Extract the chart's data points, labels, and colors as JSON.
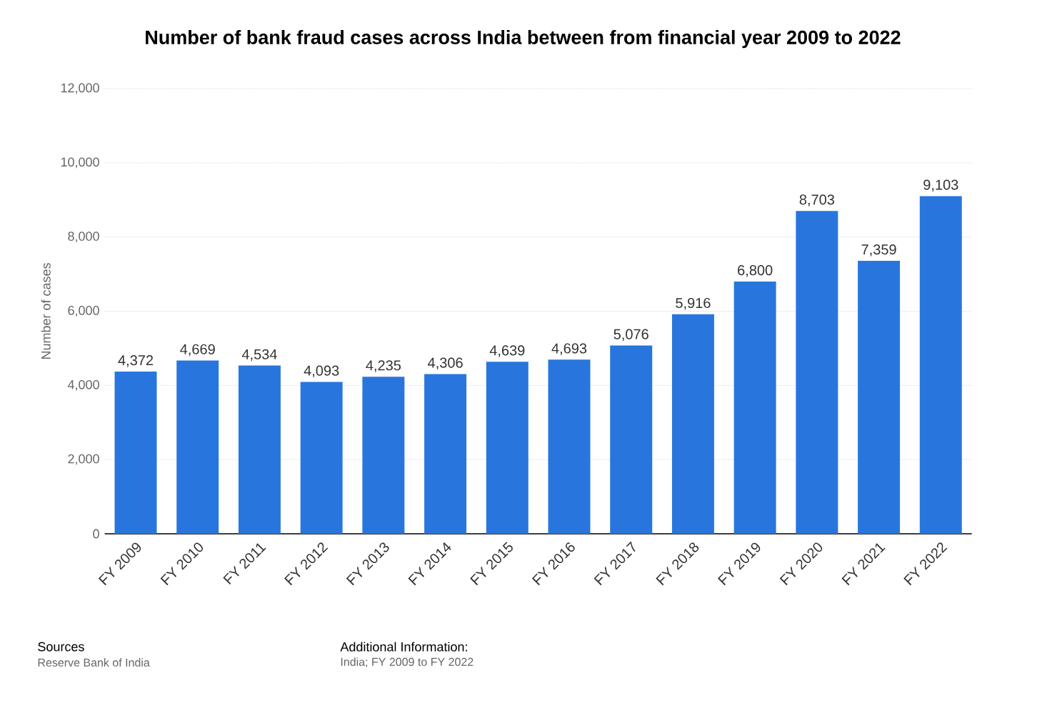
{
  "chart_data": {
    "type": "bar",
    "title": "Number of bank fraud cases across India between from financial year 2009 to 2022",
    "ylabel": "Number of cases",
    "categories": [
      "FY 2009",
      "FY 2010",
      "FY 2011",
      "FY 2012",
      "FY 2013",
      "FY 2014",
      "FY 2015",
      "FY 2016",
      "FY 2017",
      "FY 2018",
      "FY 2019",
      "FY 2020",
      "FY 2021",
      "FY 2022"
    ],
    "values": [
      4372,
      4669,
      4534,
      4093,
      4235,
      4306,
      4639,
      4693,
      5076,
      5916,
      6800,
      8703,
      7359,
      9103
    ],
    "value_labels": [
      "4,372",
      "4,669",
      "4,534",
      "4,093",
      "4,235",
      "4,306",
      "4,639",
      "4,693",
      "5,076",
      "5,916",
      "6,800",
      "8,703",
      "7,359",
      "9,103"
    ],
    "color": "#2876dd",
    "ylim": [
      0,
      12000
    ],
    "yticks": [
      0,
      {
        "value": 2000,
        "label": "2,000"
      },
      {
        "value": 4000,
        "label": "4,000"
      },
      {
        "value": 6000,
        "label": "6,000"
      },
      {
        "value": 8000,
        "label": "8,000"
      },
      {
        "value": 10000,
        "label": "10,000"
      },
      {
        "value": 12000,
        "label": "12,000"
      }
    ],
    "grid": "y",
    "annotations": [
      "Sources",
      "Reserve Bank of India",
      "Additional Information:",
      "India; FY 2009 to FY 2022"
    ]
  }
}
